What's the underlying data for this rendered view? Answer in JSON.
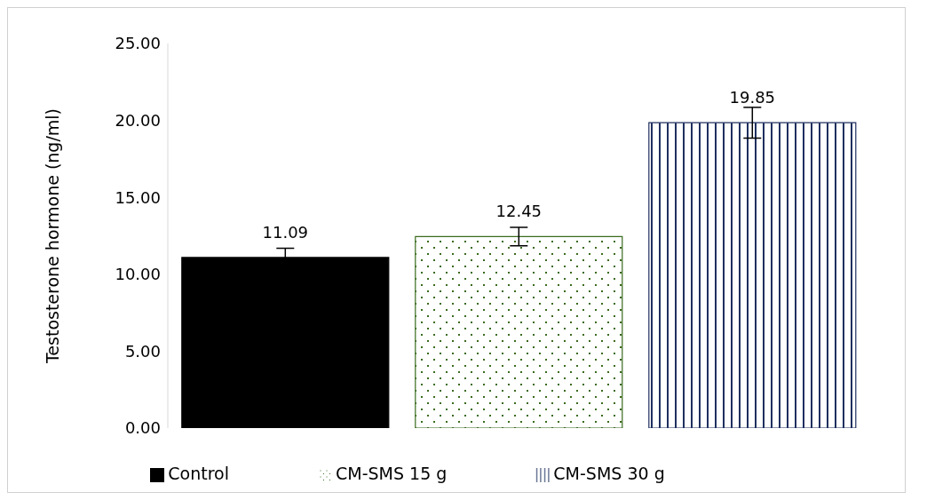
{
  "chart_data": {
    "type": "bar",
    "ylabel": "Testosterone hormone (ng/ml)",
    "categories": [
      null
    ],
    "series": [
      {
        "name": "Control",
        "color": "#000000",
        "values": [
          11.09
        ],
        "errors": [
          0.6
        ]
      },
      {
        "name": "CM-SMS 15 g",
        "color": "#3a6b1f",
        "values": [
          12.45
        ],
        "errors": [
          0.6
        ]
      },
      {
        "name": "CM-SMS 30 g",
        "color": "#1f2f5f",
        "values": [
          19.85
        ],
        "errors": [
          1.0
        ]
      }
    ],
    "ylim": [
      0,
      25
    ],
    "yticks": [
      {
        "value": 0,
        "label": "0.00"
      },
      {
        "value": 5,
        "label": "5.00"
      },
      {
        "value": 10,
        "label": "10.00"
      },
      {
        "value": 15,
        "label": "15.00"
      },
      {
        "value": 20,
        "label": "20.00"
      },
      {
        "value": 25,
        "label": "25.00"
      }
    ],
    "data_labels": true,
    "legend": "bottom",
    "grid": false
  }
}
